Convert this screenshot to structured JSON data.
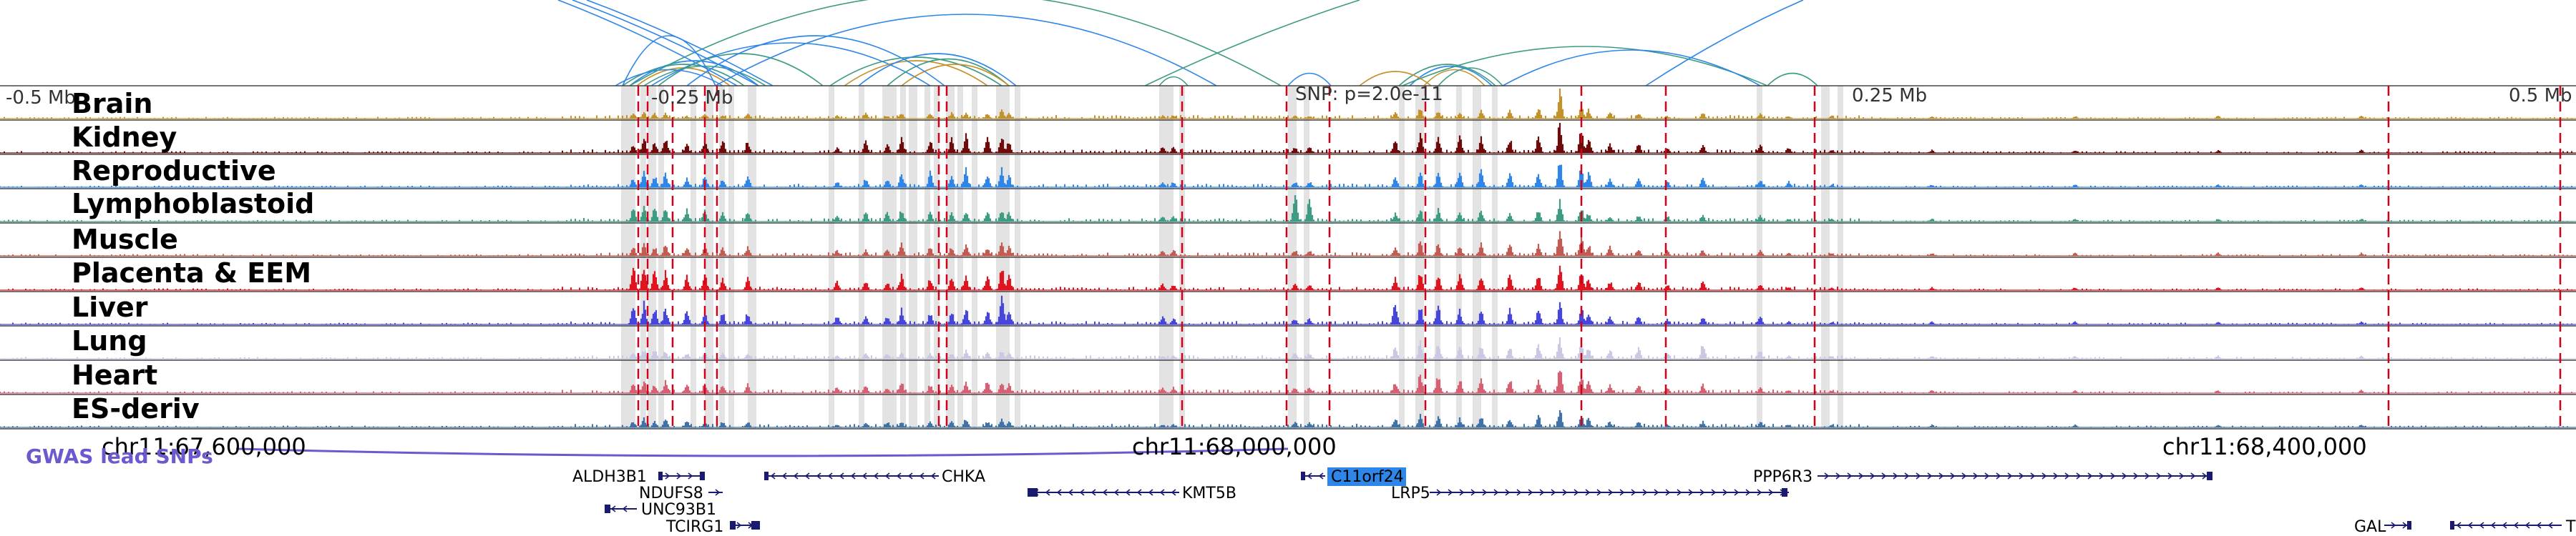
{
  "scale_labels": [
    "-0.5 Mb",
    "-0.25 Mb",
    "SNP: p=2.0e-11",
    "0.25 Mb",
    "0.5 Mb"
  ],
  "tracks": [
    {
      "name": "Brain",
      "color": "#C4922B"
    },
    {
      "name": "Kidney",
      "color": "#6E0A0A"
    },
    {
      "name": "Reproductive",
      "color": "#2E86E8"
    },
    {
      "name": "Lymphoblastoid",
      "color": "#3E9C84"
    },
    {
      "name": "Muscle",
      "color": "#C25B52"
    },
    {
      "name": "Placenta & EEM",
      "color": "#E0141E"
    },
    {
      "name": "Liver",
      "color": "#4646DC"
    },
    {
      "name": "Lung",
      "color": "#C9C9E3"
    },
    {
      "name": "Heart",
      "color": "#D65F72"
    },
    {
      "name": "ES-deriv",
      "color": "#3F73A8"
    }
  ],
  "coordinates": [
    "chr11:67,600,000",
    "chr11:68,000,000",
    "chr11:68,400,000"
  ],
  "gwas_label": "GWAS lead SNPs",
  "gwas_color": "#6A5ACD",
  "genes": [
    {
      "name": "ALDH3B1",
      "strand": "+"
    },
    {
      "name": "NDUFS8",
      "strand": "+"
    },
    {
      "name": "UNC93B1",
      "strand": "-"
    },
    {
      "name": "TCIRG1",
      "strand": "+"
    },
    {
      "name": "CHKA",
      "strand": "-"
    },
    {
      "name": "KMT5B",
      "strand": "-"
    },
    {
      "name": "C11orf24",
      "strand": "-",
      "highlighted": true
    },
    {
      "name": "LRP5",
      "strand": "+"
    },
    {
      "name": "PPP6R3",
      "strand": "+"
    },
    {
      "name": "GAL",
      "strand": "+"
    },
    {
      "name": "T",
      "strand": "-"
    }
  ],
  "colors": {
    "gene": "#1A1A6E",
    "highlight": "#2E86E8",
    "marker": "#D0021B",
    "column": "#E3E3E3",
    "loop_blue": "#2E86E8",
    "loop_green": "#3E9C84",
    "loop_gold": "#C4922B"
  }
}
